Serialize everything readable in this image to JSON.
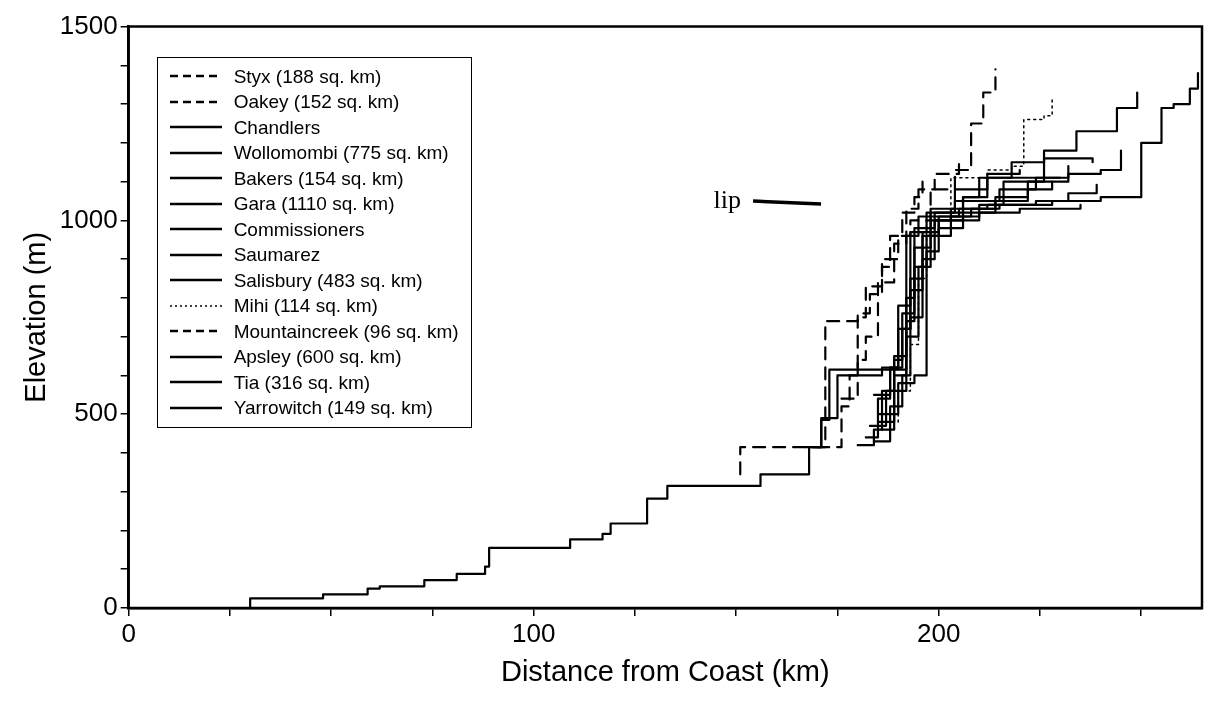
{
  "chart_data": {
    "type": "step",
    "xlabel": "Distance from Coast (km)",
    "ylabel": "Elevation (m)",
    "xlim": [
      0,
      265
    ],
    "ylim": [
      0,
      1500
    ],
    "xticks": [
      0,
      {
        "value": 25,
        "label": null
      },
      {
        "value": 50,
        "label": null
      },
      {
        "value": 75,
        "label": null
      },
      100,
      {
        "value": 125,
        "label": null
      },
      {
        "value": 150,
        "label": null
      },
      {
        "value": 175,
        "label": null
      },
      200,
      {
        "value": 225,
        "label": null
      },
      {
        "value": 250,
        "label": null
      }
    ],
    "yticks": [
      0,
      {
        "value": 100,
        "label": null
      },
      {
        "value": 200,
        "label": null
      },
      {
        "value": 300,
        "label": null
      },
      {
        "value": 400,
        "label": null
      },
      500,
      {
        "value": 600,
        "label": null
      },
      {
        "value": 700,
        "label": null
      },
      {
        "value": 800,
        "label": null
      },
      {
        "value": 900,
        "label": null
      },
      1000,
      {
        "value": 1100,
        "label": null
      },
      {
        "value": 1200,
        "label": null
      },
      {
        "value": 1300,
        "label": null
      },
      {
        "value": 1400,
        "label": null
      },
      1500
    ],
    "grid": false,
    "legend": "top left",
    "marker": "none",
    "line_style": "solid",
    "annotations": [
      "lip"
    ],
    "series": [
      {
        "name": "Styx (188 sq. km)",
        "color": "#000000",
        "line_style": "dashed",
        "x": [
          151,
          151,
          170,
          172,
          180,
          182,
          186,
          190,
          193,
          198,
          204,
          208,
          211,
          214
        ],
        "values": [
          345,
          415,
          415,
          740,
          750,
          830,
          900,
          960,
          1000,
          1080,
          1130,
          1250,
          1330,
          1390
        ]
      },
      {
        "name": "Oakey (152 sq. km)",
        "color": "#000000",
        "line_style": "dashed",
        "x": [
          170,
          176,
          178,
          180,
          183,
          186,
          188,
          191,
          194,
          196
        ],
        "values": [
          415,
          520,
          600,
          760,
          810,
          880,
          960,
          1020,
          1060,
          1100
        ]
      },
      {
        "name": "Chandlers",
        "color": "#000000",
        "x": [
          0,
          30,
          48,
          59,
          62,
          73,
          81,
          88,
          89,
          109,
          117,
          119,
          128,
          133,
          156,
          168,
          171,
          173,
          190,
          192,
          195,
          205,
          215,
          228,
          240,
          250,
          255,
          258,
          262,
          264
        ],
        "values": [
          0,
          25,
          35,
          50,
          56,
          72,
          88,
          107,
          155,
          177,
          191,
          218,
          282,
          315,
          345,
          415,
          485,
          615,
          615,
          960,
          1010,
          1030,
          1040,
          1050,
          1060,
          1200,
          1290,
          1300,
          1340,
          1380
        ]
      },
      {
        "name": "Wollomombi (775 sq. km)",
        "color": "#000000",
        "x": [
          180,
          184,
          186,
          189,
          191,
          194,
          198,
          203,
          210,
          216,
          226,
          234,
          244,
          249
        ],
        "values": [
          420,
          460,
          560,
          640,
          760,
          930,
          1000,
          1010,
          1040,
          1100,
          1180,
          1230,
          1290,
          1330
        ]
      },
      {
        "name": "Bakers (154 sq. km)",
        "color": "#000000",
        "x": [
          182,
          185,
          188,
          190,
          193,
          196,
          200,
          208,
          214,
          222,
          232,
          240,
          245
        ],
        "values": [
          440,
          540,
          620,
          720,
          850,
          970,
          1010,
          1030,
          1060,
          1100,
          1120,
          1130,
          1180
        ]
      },
      {
        "name": "Gara (1110 sq. km)",
        "color": "#000000",
        "x": [
          183,
          187,
          189,
          192,
          194,
          199,
          206,
          212,
          218,
          226,
          238
        ],
        "values": [
          470,
          560,
          650,
          800,
          980,
          1020,
          1060,
          1110,
          1150,
          1160,
          1150
        ]
      },
      {
        "name": "Commissioners",
        "color": "#000000",
        "x": [
          184,
          188,
          191,
          193,
          196,
          199,
          206,
          210,
          230
        ],
        "values": [
          430,
          520,
          600,
          750,
          900,
          1000,
          1060,
          1110,
          1110
        ]
      },
      {
        "name": "Saumarez",
        "color": "#000000",
        "x": [
          186,
          189,
          192,
          195,
          197,
          203,
          212,
          224,
          232,
          239
        ],
        "values": [
          460,
          560,
          700,
          880,
          960,
          1030,
          1040,
          1050,
          1070,
          1092
        ]
      },
      {
        "name": "Salisbury (483 sq. km)",
        "color": "#000000",
        "x": [
          185,
          190,
          194,
          197,
          200,
          206,
          214,
          222,
          228
        ],
        "values": [
          500,
          580,
          600,
          920,
          980,
          1020,
          1050,
          1080,
          1100
        ]
      },
      {
        "name": "Mihi (114 sq. km)",
        "color": "#000000",
        "line_style": "dotted",
        "x": [
          187,
          190,
          193,
          195,
          197,
          203,
          212,
          218,
          221,
          226,
          228
        ],
        "values": [
          480,
          560,
          680,
          850,
          1000,
          1110,
          1130,
          1140,
          1260,
          1270,
          1320
        ]
      },
      {
        "name": "Mountaincreek (96 sq. km)",
        "color": "#000000",
        "line_style": "dashed",
        "x": [
          176,
          180,
          182,
          185,
          189,
          192,
          195,
          199,
          205
        ],
        "values": [
          540,
          640,
          700,
          840,
          940,
          1030,
          1080,
          1120,
          1150
        ]
      },
      {
        "name": "Apsley (600 sq. km)",
        "color": "#000000",
        "x": [
          184,
          188,
          191,
          193,
          196,
          200,
          210,
          220,
          235
        ],
        "values": [
          550,
          620,
          720,
          820,
          960,
          1000,
          1020,
          1030,
          1040
        ]
      },
      {
        "name": "Tia (316 sq. km)",
        "color": "#000000",
        "x": [
          185,
          189,
          192,
          194,
          198,
          204,
          212,
          220
        ],
        "values": [
          480,
          600,
          740,
          880,
          1030,
          1080,
          1120,
          1130
        ]
      },
      {
        "name": "Yarrowitch (149 sq. km)",
        "color": "#000000",
        "x": [
          167,
          171,
          175,
          186,
          190,
          193,
          197,
          204,
          215,
          224,
          232
        ],
        "values": [
          415,
          490,
          600,
          620,
          780,
          970,
          1020,
          1050,
          1080,
          1110,
          1140
        ]
      }
    ]
  }
}
